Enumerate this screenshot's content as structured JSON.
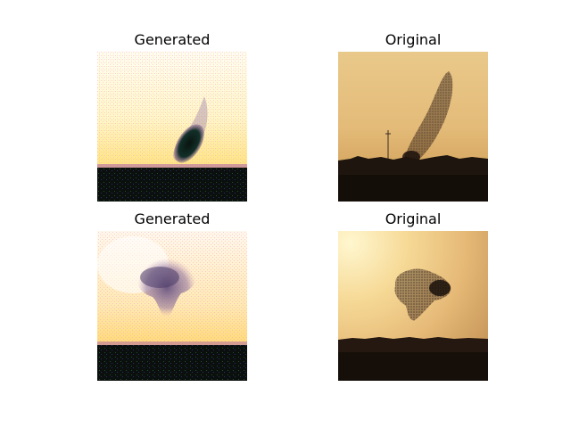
{
  "figure": {
    "panels": [
      {
        "title": "Generated",
        "image": "generated-murmuration-1"
      },
      {
        "title": "Original",
        "image": "original-murmuration-1"
      },
      {
        "title": "Generated",
        "image": "generated-murmuration-2"
      },
      {
        "title": "Original",
        "image": "original-murmuration-2"
      }
    ]
  }
}
